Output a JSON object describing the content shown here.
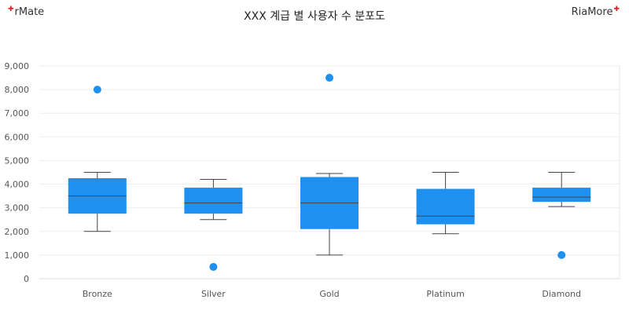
{
  "header": {
    "left_brand": "rMate",
    "right_brand": "RiaMore",
    "title": "XXX 계급 별 사용자 수 분포도"
  },
  "chart_data": {
    "type": "boxplot",
    "title": "XXX 계급 별 사용자 수 분포도",
    "xlabel": "",
    "ylabel": "",
    "ylim": [
      0,
      9000
    ],
    "yticks": [
      "0",
      "1,000",
      "2,000",
      "3,000",
      "4,000",
      "5,000",
      "6,000",
      "7,000",
      "8,000",
      "9,000"
    ],
    "grid": true,
    "color": "#1e90f0",
    "categories": [
      "Bronze",
      "Silver",
      "Gold",
      "Platinum",
      "Diamond"
    ],
    "boxes": [
      {
        "min": 2000,
        "q1": 2750,
        "median": 3500,
        "q3": 4250,
        "max": 4500,
        "outliers": [
          8000
        ]
      },
      {
        "min": 2500,
        "q1": 2750,
        "median": 3200,
        "q3": 3850,
        "max": 4200,
        "outliers": [
          500
        ]
      },
      {
        "min": 1000,
        "q1": 2100,
        "median": 3200,
        "q3": 4300,
        "max": 4450,
        "outliers": [
          8500
        ]
      },
      {
        "min": 1900,
        "q1": 2300,
        "median": 2650,
        "q3": 3800,
        "max": 4500,
        "outliers": []
      },
      {
        "min": 3050,
        "q1": 3250,
        "median": 3450,
        "q3": 3850,
        "max": 4500,
        "outliers": [
          1000
        ]
      }
    ]
  }
}
